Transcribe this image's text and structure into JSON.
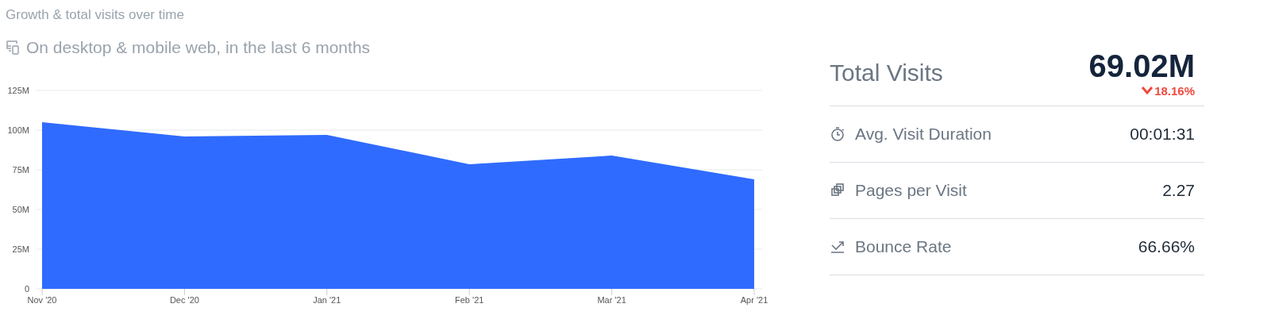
{
  "chart_data": [
    {
      "type": "area",
      "title": "Growth & total visits over time",
      "subtitle": "On desktop & mobile web, in the last 6 months",
      "categories": [
        "Nov '20",
        "Dec '20",
        "Jan '21",
        "Feb '21",
        "Mar '21",
        "Apr '21"
      ],
      "values": [
        105,
        96,
        97,
        78.5,
        84,
        69
      ],
      "color": "#2f6bff",
      "ylim": [
        0,
        125
      ],
      "yticks": [
        {
          "value": 0,
          "label": "0"
        },
        {
          "value": 25,
          "label": "25M"
        },
        {
          "value": 50,
          "label": "50M"
        },
        {
          "value": 75,
          "label": "75M"
        },
        {
          "value": 100,
          "label": "100M"
        },
        {
          "value": 125,
          "label": "125M"
        }
      ],
      "grid": "y"
    },
    {
      "type": "other",
      "categories": [
        "Total Visits",
        "Avg. Visit Duration",
        "Pages per Visit",
        "Bounce Rate"
      ],
      "value_labels": [
        "69.02M",
        "00:01:31",
        "2.27",
        "66.66%"
      ],
      "annotations": [
        "18.16%"
      ]
    }
  ]
}
